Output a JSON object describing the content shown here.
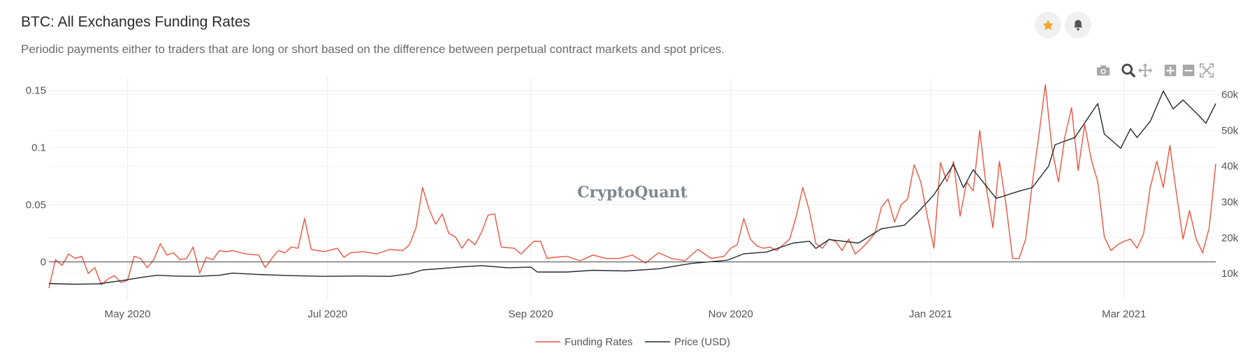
{
  "title": "BTC: All Exchanges Funding Rates",
  "subtitle": "Periodic payments either to traders that are long or short based on the difference between perpetual contract markets and spot prices.",
  "header_buttons": [
    {
      "name": "favorite-star-icon",
      "color": "#f5a623"
    },
    {
      "name": "notification-bell-icon",
      "color": "#555555"
    }
  ],
  "toolbar": [
    "camera-icon",
    "zoom-icon",
    "pan-icon",
    "zoom-in-icon",
    "zoom-out-icon",
    "autoscale-icon"
  ],
  "watermark": "CryptoQuant",
  "chart_data": {
    "type": "line",
    "x_range": [
      "2020-04-07",
      "2021-03-29"
    ],
    "x_ticks": [
      {
        "date": "2020-05-01",
        "label": "May 2020"
      },
      {
        "date": "2020-07-01",
        "label": "Jul 2020"
      },
      {
        "date": "2020-09-01",
        "label": "Sep 2020"
      },
      {
        "date": "2020-11-01",
        "label": "Nov 2020"
      },
      {
        "date": "2021-01-01",
        "label": "Jan 2021"
      },
      {
        "date": "2021-03-01",
        "label": "Mar 2021"
      }
    ],
    "y_left": {
      "range": [
        -0.032,
        0.162
      ],
      "ticks": [
        0,
        0.05,
        0.1,
        0.15
      ],
      "tick_labels": [
        "0",
        "0.05",
        "0.1",
        "0.15"
      ]
    },
    "y_right": {
      "range": [
        3000,
        65000
      ],
      "ticks": [
        10000,
        20000,
        30000,
        40000,
        50000,
        60000
      ],
      "tick_labels": [
        "10k",
        "20k",
        "30k",
        "40k",
        "50k",
        "60k"
      ]
    },
    "grid": true,
    "legend_position": "bottom-center",
    "series": [
      {
        "name": "Funding Rates",
        "axis": "left",
        "color": "#e8553e",
        "points": [
          [
            "2020-04-07",
            -0.023
          ],
          [
            "2020-04-09",
            0.002
          ],
          [
            "2020-04-11",
            -0.003
          ],
          [
            "2020-04-13",
            0.007
          ],
          [
            "2020-04-15",
            0.003
          ],
          [
            "2020-04-17",
            0.005
          ],
          [
            "2020-04-19",
            -0.01
          ],
          [
            "2020-04-21",
            -0.005
          ],
          [
            "2020-04-23",
            -0.02
          ],
          [
            "2020-04-25",
            -0.015
          ],
          [
            "2020-04-27",
            -0.012
          ],
          [
            "2020-04-29",
            -0.018
          ],
          [
            "2020-05-01",
            -0.016
          ],
          [
            "2020-05-03",
            0.005
          ],
          [
            "2020-05-05",
            0.003
          ],
          [
            "2020-05-07",
            -0.005
          ],
          [
            "2020-05-09",
            0.002
          ],
          [
            "2020-05-11",
            0.016
          ],
          [
            "2020-05-13",
            0.006
          ],
          [
            "2020-05-15",
            0.008
          ],
          [
            "2020-05-17",
            0.002
          ],
          [
            "2020-05-19",
            0.003
          ],
          [
            "2020-05-21",
            0.013
          ],
          [
            "2020-05-23",
            -0.01
          ],
          [
            "2020-05-25",
            0.004
          ],
          [
            "2020-05-27",
            0.002
          ],
          [
            "2020-05-29",
            0.01
          ],
          [
            "2020-05-31",
            0.009
          ],
          [
            "2020-06-02",
            0.01
          ],
          [
            "2020-06-06",
            0.007
          ],
          [
            "2020-06-10",
            0.006
          ],
          [
            "2020-06-12",
            -0.005
          ],
          [
            "2020-06-14",
            0.003
          ],
          [
            "2020-06-16",
            0.01
          ],
          [
            "2020-06-18",
            0.008
          ],
          [
            "2020-06-20",
            0.013
          ],
          [
            "2020-06-22",
            0.012
          ],
          [
            "2020-06-24",
            0.038
          ],
          [
            "2020-06-26",
            0.011
          ],
          [
            "2020-06-30",
            0.009
          ],
          [
            "2020-07-04",
            0.012
          ],
          [
            "2020-07-06",
            0.004
          ],
          [
            "2020-07-08",
            0.008
          ],
          [
            "2020-07-12",
            0.009
          ],
          [
            "2020-07-16",
            0.007
          ],
          [
            "2020-07-20",
            0.011
          ],
          [
            "2020-07-24",
            0.01
          ],
          [
            "2020-07-26",
            0.015
          ],
          [
            "2020-07-28",
            0.03
          ],
          [
            "2020-07-30",
            0.065
          ],
          [
            "2020-08-01",
            0.046
          ],
          [
            "2020-08-03",
            0.033
          ],
          [
            "2020-08-05",
            0.042
          ],
          [
            "2020-08-07",
            0.025
          ],
          [
            "2020-08-09",
            0.022
          ],
          [
            "2020-08-11",
            0.012
          ],
          [
            "2020-08-13",
            0.02
          ],
          [
            "2020-08-15",
            0.015
          ],
          [
            "2020-08-17",
            0.026
          ],
          [
            "2020-08-19",
            0.041
          ],
          [
            "2020-08-21",
            0.042
          ],
          [
            "2020-08-23",
            0.013
          ],
          [
            "2020-08-27",
            0.012
          ],
          [
            "2020-08-29",
            0.007
          ],
          [
            "2020-09-02",
            0.018
          ],
          [
            "2020-09-04",
            0.018
          ],
          [
            "2020-09-06",
            0.003
          ],
          [
            "2020-09-08",
            0.004
          ],
          [
            "2020-09-12",
            0.005
          ],
          [
            "2020-09-16",
            0.001
          ],
          [
            "2020-09-20",
            0.006
          ],
          [
            "2020-09-24",
            0.003
          ],
          [
            "2020-09-28",
            0.003
          ],
          [
            "2020-10-02",
            0.006
          ],
          [
            "2020-10-06",
            -0.001
          ],
          [
            "2020-10-10",
            0.008
          ],
          [
            "2020-10-14",
            0.003
          ],
          [
            "2020-10-18",
            0.001
          ],
          [
            "2020-10-22",
            0.011
          ],
          [
            "2020-10-26",
            0.003
          ],
          [
            "2020-10-30",
            0.005
          ],
          [
            "2020-11-01",
            0.012
          ],
          [
            "2020-11-03",
            0.015
          ],
          [
            "2020-11-05",
            0.038
          ],
          [
            "2020-11-07",
            0.02
          ],
          [
            "2020-11-09",
            0.014
          ],
          [
            "2020-11-11",
            0.012
          ],
          [
            "2020-11-13",
            0.013
          ],
          [
            "2020-11-15",
            0.01
          ],
          [
            "2020-11-17",
            0.015
          ],
          [
            "2020-11-19",
            0.02
          ],
          [
            "2020-11-21",
            0.04
          ],
          [
            "2020-11-23",
            0.065
          ],
          [
            "2020-11-25",
            0.045
          ],
          [
            "2020-11-27",
            0.016
          ],
          [
            "2020-11-29",
            0.012
          ],
          [
            "2020-12-01",
            0.02
          ],
          [
            "2020-12-03",
            0.018
          ],
          [
            "2020-12-05",
            0.01
          ],
          [
            "2020-12-07",
            0.02
          ],
          [
            "2020-12-09",
            0.007
          ],
          [
            "2020-12-11",
            0.012
          ],
          [
            "2020-12-13",
            0.018
          ],
          [
            "2020-12-15",
            0.025
          ],
          [
            "2020-12-17",
            0.048
          ],
          [
            "2020-12-19",
            0.055
          ],
          [
            "2020-12-21",
            0.035
          ],
          [
            "2020-12-23",
            0.05
          ],
          [
            "2020-12-25",
            0.055
          ],
          [
            "2020-12-27",
            0.085
          ],
          [
            "2020-12-29",
            0.07
          ],
          [
            "2020-12-31",
            0.04
          ],
          [
            "2021-01-02",
            0.012
          ],
          [
            "2021-01-04",
            0.087
          ],
          [
            "2021-01-06",
            0.07
          ],
          [
            "2021-01-08",
            0.088
          ],
          [
            "2021-01-10",
            0.04
          ],
          [
            "2021-01-12",
            0.07
          ],
          [
            "2021-01-14",
            0.062
          ],
          [
            "2021-01-16",
            0.115
          ],
          [
            "2021-01-18",
            0.065
          ],
          [
            "2021-01-20",
            0.03
          ],
          [
            "2021-01-22",
            0.088
          ],
          [
            "2021-01-24",
            0.05
          ],
          [
            "2021-01-26",
            0.003
          ],
          [
            "2021-01-28",
            0.003
          ],
          [
            "2021-01-30",
            0.02
          ],
          [
            "2021-02-01",
            0.068
          ],
          [
            "2021-02-03",
            0.11
          ],
          [
            "2021-02-05",
            0.155
          ],
          [
            "2021-02-07",
            0.1
          ],
          [
            "2021-02-09",
            0.07
          ],
          [
            "2021-02-11",
            0.11
          ],
          [
            "2021-02-13",
            0.135
          ],
          [
            "2021-02-15",
            0.08
          ],
          [
            "2021-02-17",
            0.12
          ],
          [
            "2021-02-19",
            0.09
          ],
          [
            "2021-02-21",
            0.07
          ],
          [
            "2021-02-23",
            0.022
          ],
          [
            "2021-02-25",
            0.01
          ],
          [
            "2021-02-27",
            0.015
          ],
          [
            "2021-03-01",
            0.018
          ],
          [
            "2021-03-03",
            0.02
          ],
          [
            "2021-03-05",
            0.012
          ],
          [
            "2021-03-07",
            0.025
          ],
          [
            "2021-03-09",
            0.065
          ],
          [
            "2021-03-11",
            0.088
          ],
          [
            "2021-03-13",
            0.065
          ],
          [
            "2021-03-15",
            0.102
          ],
          [
            "2021-03-17",
            0.06
          ],
          [
            "2021-03-19",
            0.02
          ],
          [
            "2021-03-21",
            0.045
          ],
          [
            "2021-03-23",
            0.02
          ],
          [
            "2021-03-25",
            0.008
          ],
          [
            "2021-03-27",
            0.03
          ],
          [
            "2021-03-29",
            0.086
          ]
        ]
      },
      {
        "name": "Price (USD)",
        "axis": "right",
        "color": "#1f2933",
        "points": [
          [
            "2020-04-07",
            7200
          ],
          [
            "2020-04-15",
            7000
          ],
          [
            "2020-04-22",
            7100
          ],
          [
            "2020-04-29",
            8000
          ],
          [
            "2020-05-06",
            9000
          ],
          [
            "2020-05-10",
            9500
          ],
          [
            "2020-05-15",
            9300
          ],
          [
            "2020-05-22",
            9200
          ],
          [
            "2020-05-29",
            9500
          ],
          [
            "2020-06-02",
            10100
          ],
          [
            "2020-06-10",
            9700
          ],
          [
            "2020-06-20",
            9400
          ],
          [
            "2020-06-30",
            9200
          ],
          [
            "2020-07-10",
            9300
          ],
          [
            "2020-07-20",
            9200
          ],
          [
            "2020-07-26",
            9900
          ],
          [
            "2020-07-30",
            11000
          ],
          [
            "2020-08-05",
            11400
          ],
          [
            "2020-08-10",
            11800
          ],
          [
            "2020-08-17",
            12200
          ],
          [
            "2020-08-25",
            11600
          ],
          [
            "2020-09-01",
            11800
          ],
          [
            "2020-09-03",
            10400
          ],
          [
            "2020-09-12",
            10400
          ],
          [
            "2020-09-20",
            10900
          ],
          [
            "2020-09-30",
            10700
          ],
          [
            "2020-10-10",
            11300
          ],
          [
            "2020-10-20",
            12800
          ],
          [
            "2020-10-31",
            13700
          ],
          [
            "2020-11-05",
            15500
          ],
          [
            "2020-11-12",
            16000
          ],
          [
            "2020-11-20",
            18500
          ],
          [
            "2020-11-25",
            19000
          ],
          [
            "2020-11-27",
            17000
          ],
          [
            "2020-12-01",
            19500
          ],
          [
            "2020-12-10",
            18500
          ],
          [
            "2020-12-17",
            22500
          ],
          [
            "2020-12-24",
            23500
          ],
          [
            "2020-12-28",
            27000
          ],
          [
            "2021-01-02",
            32000
          ],
          [
            "2021-01-08",
            40500
          ],
          [
            "2021-01-11",
            34000
          ],
          [
            "2021-01-14",
            39000
          ],
          [
            "2021-01-21",
            31000
          ],
          [
            "2021-01-28",
            33000
          ],
          [
            "2021-02-01",
            34000
          ],
          [
            "2021-02-06",
            40000
          ],
          [
            "2021-02-08",
            46000
          ],
          [
            "2021-02-14",
            48000
          ],
          [
            "2021-02-21",
            57500
          ],
          [
            "2021-02-23",
            49000
          ],
          [
            "2021-02-28",
            45000
          ],
          [
            "2021-03-03",
            50500
          ],
          [
            "2021-03-05",
            48000
          ],
          [
            "2021-03-09",
            52500
          ],
          [
            "2021-03-13",
            61000
          ],
          [
            "2021-03-16",
            56000
          ],
          [
            "2021-03-19",
            58500
          ],
          [
            "2021-03-24",
            54000
          ],
          [
            "2021-03-26",
            52000
          ],
          [
            "2021-03-29",
            57500
          ]
        ]
      }
    ]
  }
}
